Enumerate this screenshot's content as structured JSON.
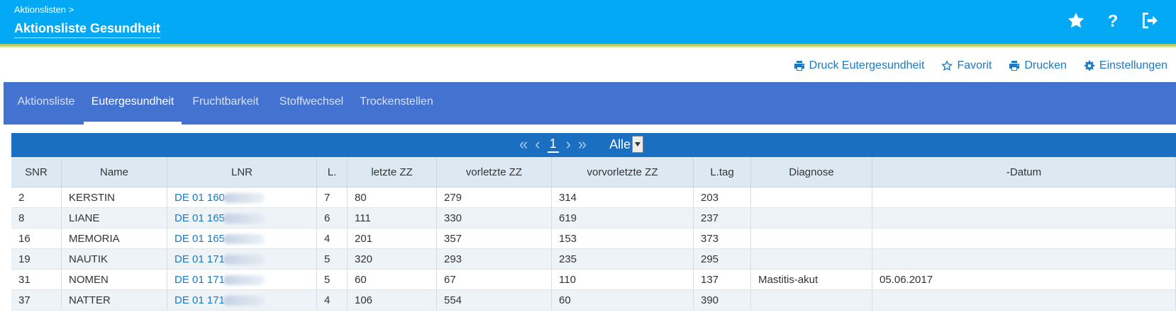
{
  "header": {
    "breadcrumb": "Aktionslisten >",
    "title": "Aktionsliste Gesundheit",
    "icons": [
      "star-icon",
      "question-icon",
      "logout-icon"
    ]
  },
  "actions": [
    {
      "label": "Druck Eutergesundheit",
      "icon": "print-icon"
    },
    {
      "label": "Favorit",
      "icon": "star-outline-icon"
    },
    {
      "label": "Drucken",
      "icon": "print-icon"
    },
    {
      "label": "Einstellungen",
      "icon": "gear-icon"
    }
  ],
  "tabs": [
    {
      "label": "Aktionsliste"
    },
    {
      "label": "Eutergesundheit",
      "active": true
    },
    {
      "label": "Fruchtbarkeit"
    },
    {
      "label": "Stoffwechsel"
    },
    {
      "label": "Trockenstellen"
    }
  ],
  "pager": {
    "first": "«",
    "prev": "‹",
    "current": "1",
    "next": "›",
    "last": "»",
    "select_value": "Alle"
  },
  "table": {
    "columns": [
      "SNR",
      "Name",
      "LNR",
      "L.",
      "letzte ZZ",
      "vorletzte ZZ",
      "vorvorletzte ZZ",
      "L.tag",
      "Diagnose",
      "-Datum"
    ],
    "rows": [
      [
        "2",
        "KERSTIN",
        "DE 01 160",
        "7",
        "80",
        "279",
        "314",
        "203",
        "",
        ""
      ],
      [
        "8",
        "LIANE",
        "DE 01 165",
        "6",
        "111",
        "330",
        "619",
        "237",
        "",
        ""
      ],
      [
        "16",
        "MEMORIA",
        "DE 01 165",
        "4",
        "201",
        "357",
        "153",
        "373",
        "",
        ""
      ],
      [
        "19",
        "NAUTIK",
        "DE 01 171",
        "5",
        "320",
        "293",
        "235",
        "295",
        "",
        ""
      ],
      [
        "31",
        "NOMEN",
        "DE 01 171",
        "5",
        "60",
        "67",
        "110",
        "137",
        "Mastitis-akut",
        "05.06.2017"
      ],
      [
        "37",
        "NATTER",
        "DE 01 171",
        "4",
        "106",
        "554",
        "60",
        "390",
        "",
        ""
      ]
    ]
  },
  "colors": {
    "header_bg": "#03a9f4",
    "tabs_bg": "#4472d0",
    "pager_bg": "#1b6fc1",
    "link": "#1a79c4"
  }
}
